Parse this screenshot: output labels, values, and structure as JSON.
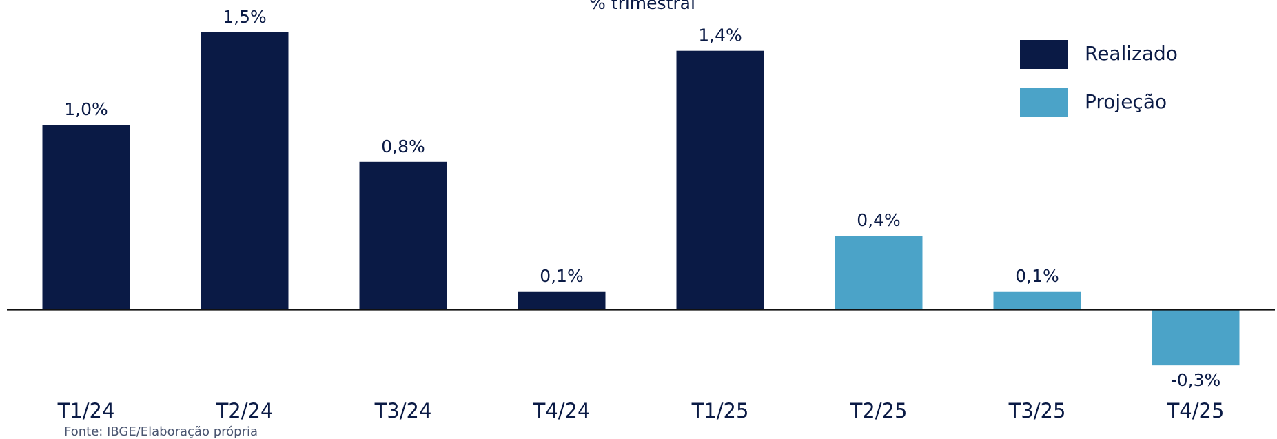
{
  "chart_data": {
    "type": "bar",
    "subtitle": "% trimestral",
    "categories": [
      "T1/24",
      "T2/24",
      "T3/24",
      "T4/24",
      "T1/25",
      "T2/25",
      "T3/25",
      "T4/25"
    ],
    "series": [
      {
        "name": "Realizado",
        "color": "#0a1a45",
        "values": [
          1.0,
          1.5,
          0.8,
          0.1,
          1.4,
          null,
          null,
          null
        ],
        "value_labels": [
          "1,0%",
          "1,5%",
          "0,8%",
          "0,1%",
          "1,4%",
          null,
          null,
          null
        ]
      },
      {
        "name": "Projeção",
        "color": "#4ba3c8",
        "values": [
          null,
          null,
          null,
          null,
          null,
          0.4,
          0.1,
          -0.3
        ],
        "value_labels": [
          null,
          null,
          null,
          null,
          null,
          "0,4%",
          "0,1%",
          "-0,3%"
        ]
      }
    ],
    "ylim": [
      -0.6,
      1.6
    ],
    "legend": "upper right",
    "source": "Fonte: IBGE/Elaboração própria"
  }
}
